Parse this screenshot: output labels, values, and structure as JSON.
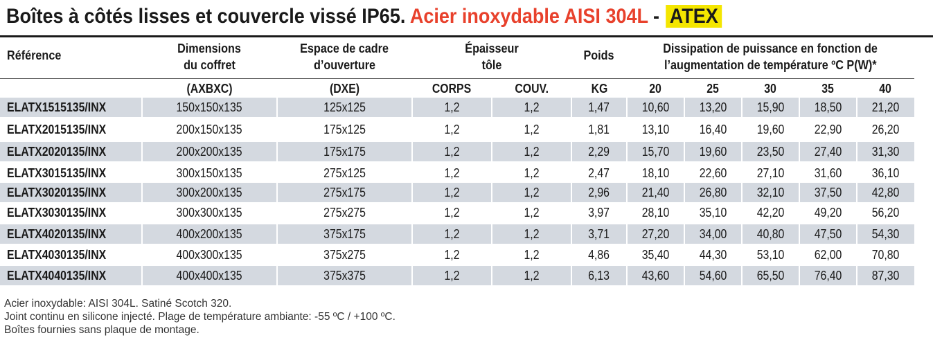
{
  "title": {
    "part1": "Boîtes à côtés lisses et couvercle vissé IP65.",
    "part2": "Acier inoxydable AISI 304L",
    "sep": "-",
    "part3": "ATEX"
  },
  "header": {
    "reference": "Référence",
    "dimensions_l1": "Dimensions",
    "dimensions_l2": "du coffret",
    "espace_l1": "Espace de cadre",
    "espace_l2": "d’ouverture",
    "epaisseur_l1": "Épaisseur",
    "epaisseur_l2": "tôle",
    "poids": "Poids",
    "dissipation_l1": "Dissipation de puissance en fonction de",
    "dissipation_l2": "l’augmentation de température ºC P(W)*"
  },
  "subheader": {
    "dimensions": "(AXBXC)",
    "espace": "(DXE)",
    "corps": "CORPS",
    "couv": "COUV.",
    "kg": "KG",
    "t20": "20",
    "t25": "25",
    "t30": "30",
    "t35": "35",
    "t40": "40"
  },
  "rows": [
    {
      "ref": "ELATX1515135/INX",
      "dim": "150x150x135",
      "esp": "125x125",
      "corps": "1,2",
      "couv": "1,2",
      "kg": "1,47",
      "t20": "10,60",
      "t25": "13,20",
      "t30": "15,90",
      "t35": "18,50",
      "t40": "21,20"
    },
    {
      "ref": "ELATX2015135/INX",
      "dim": "200x150x135",
      "esp": "175x125",
      "corps": "1,2",
      "couv": "1,2",
      "kg": "1,81",
      "t20": "13,10",
      "t25": "16,40",
      "t30": "19,60",
      "t35": "22,90",
      "t40": "26,20"
    },
    {
      "ref": "ELATX2020135/INX",
      "dim": "200x200x135",
      "esp": "175x175",
      "corps": "1,2",
      "couv": "1,2",
      "kg": "2,29",
      "t20": "15,70",
      "t25": "19,60",
      "t30": "23,50",
      "t35": "27,40",
      "t40": "31,30"
    },
    {
      "ref": "ELATX3015135/INX",
      "dim": "300x150x135",
      "esp": "275x125",
      "corps": "1,2",
      "couv": "1,2",
      "kg": "2,47",
      "t20": "18,10",
      "t25": "22,60",
      "t30": "27,10",
      "t35": "31,60",
      "t40": "36,10"
    },
    {
      "ref": "ELATX3020135/INX",
      "dim": "300x200x135",
      "esp": "275x175",
      "corps": "1,2",
      "couv": "1,2",
      "kg": "2,96",
      "t20": "21,40",
      "t25": "26,80",
      "t30": "32,10",
      "t35": "37,50",
      "t40": "42,80"
    },
    {
      "ref": "ELATX3030135/INX",
      "dim": "300x300x135",
      "esp": "275x275",
      "corps": "1,2",
      "couv": "1,2",
      "kg": "3,97",
      "t20": "28,10",
      "t25": "35,10",
      "t30": "42,20",
      "t35": "49,20",
      "t40": "56,20"
    },
    {
      "ref": "ELATX4020135/INX",
      "dim": "400x200x135",
      "esp": "375x175",
      "corps": "1,2",
      "couv": "1,2",
      "kg": "3,71",
      "t20": "27,20",
      "t25": "34,00",
      "t30": "40,80",
      "t35": "47,50",
      "t40": "54,30"
    },
    {
      "ref": "ELATX4030135/INX",
      "dim": "400x300x135",
      "esp": "375x275",
      "corps": "1,2",
      "couv": "1,2",
      "kg": "4,86",
      "t20": "35,40",
      "t25": "44,30",
      "t30": "53,10",
      "t35": "62,00",
      "t40": "70,80"
    },
    {
      "ref": "ELATX4040135/INX",
      "dim": "400x400x135",
      "esp": "375x375",
      "corps": "1,2",
      "couv": "1,2",
      "kg": "6,13",
      "t20": "43,60",
      "t25": "54,60",
      "t30": "65,50",
      "t35": "76,40",
      "t40": "87,30"
    }
  ],
  "notes": [
    "Acier inoxydable: AISI 304L. Satiné Scotch 320.",
    "Joint continu en silicone injecté. Plage de température ambiante: -55 ºC / +100 ºC.",
    "Boîtes fournies sans plaque de montage."
  ],
  "colors": {
    "title_red": "#e8412c",
    "atex_highlight": "#f4e600",
    "row_shade": "#d4d9e0"
  }
}
